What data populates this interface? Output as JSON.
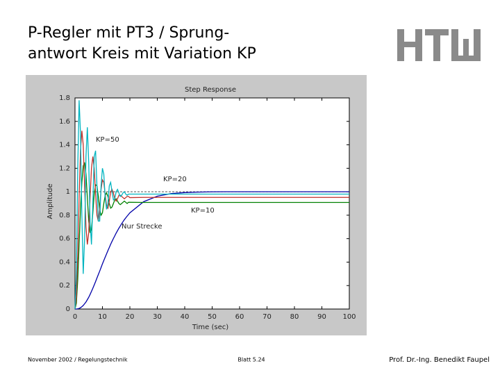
{
  "header": {
    "title_line1": "P-Regler mit PT3 / Sprung-",
    "title_line2": "antwort Kreis mit Variation KP"
  },
  "chart_data": {
    "type": "line",
    "title": "Step Response",
    "x_label": "Time (sec)",
    "y_label": "Amplitude",
    "x": [
      0,
      0.5,
      1,
      1.5,
      2,
      2.5,
      3,
      3.5,
      4,
      4.5,
      5,
      5.5,
      6,
      6.5,
      7,
      7.5,
      8,
      8.5,
      9,
      9.5,
      10,
      10.5,
      11,
      11.5,
      12,
      12.5,
      13,
      13.5,
      14,
      14.5,
      15,
      15.5,
      16,
      16.5,
      17,
      17.5,
      18,
      18.5,
      19,
      19.5,
      20,
      25,
      30,
      35,
      40,
      45,
      50,
      55,
      60,
      65,
      70,
      75,
      80,
      85,
      90,
      95,
      100
    ],
    "series": [
      {
        "name": "Nur Strecke",
        "color": "#0000a8",
        "values": [
          0,
          0,
          0.002,
          0.005,
          0.011,
          0.02,
          0.03,
          0.045,
          0.06,
          0.08,
          0.1,
          0.124,
          0.15,
          0.177,
          0.205,
          0.234,
          0.264,
          0.294,
          0.323,
          0.354,
          0.385,
          0.414,
          0.442,
          0.47,
          0.498,
          0.525,
          0.552,
          0.577,
          0.601,
          0.624,
          0.647,
          0.668,
          0.689,
          0.708,
          0.727,
          0.745,
          0.762,
          0.777,
          0.792,
          0.806,
          0.82,
          0.915,
          0.962,
          0.984,
          0.993,
          0.997,
          0.999,
          1,
          1,
          1,
          1,
          1,
          1,
          1,
          1,
          1,
          1
        ]
      },
      {
        "name": "KP=10",
        "color": "#008000",
        "values": [
          0,
          0.05,
          0.25,
          0.55,
          0.85,
          1.08,
          1.22,
          1.25,
          1.15,
          0.95,
          0.75,
          0.65,
          0.68,
          0.82,
          0.98,
          1.06,
          1.05,
          0.96,
          0.85,
          0.8,
          0.82,
          0.9,
          0.97,
          0.99,
          0.96,
          0.9,
          0.86,
          0.87,
          0.9,
          0.93,
          0.94,
          0.92,
          0.9,
          0.89,
          0.9,
          0.91,
          0.92,
          0.91,
          0.9,
          0.91,
          0.91,
          0.909,
          0.909,
          0.909,
          0.909,
          0.909,
          0.909,
          0.909,
          0.909,
          0.909,
          0.909,
          0.909,
          0.909,
          0.909,
          0.909,
          0.909,
          0.909
        ]
      },
      {
        "name": "KP=20",
        "color": "#c0302a",
        "values": [
          0,
          0.1,
          0.45,
          0.95,
          1.35,
          1.52,
          1.4,
          1.05,
          0.7,
          0.55,
          0.65,
          0.95,
          1.2,
          1.3,
          1.2,
          0.98,
          0.8,
          0.75,
          0.85,
          1.02,
          1.1,
          1.08,
          0.98,
          0.88,
          0.86,
          0.92,
          1,
          1.02,
          0.99,
          0.94,
          0.92,
          0.94,
          0.97,
          0.97,
          0.96,
          0.95,
          0.94,
          0.95,
          0.96,
          0.96,
          0.95,
          0.952,
          0.952,
          0.952,
          0.952,
          0.952,
          0.952,
          0.952,
          0.952,
          0.952,
          0.952,
          0.952,
          0.952,
          0.952,
          0.952,
          0.952,
          0.952
        ]
      },
      {
        "name": "KP=50",
        "color": "#00b4c0",
        "values": [
          0,
          0.3,
          1.2,
          1.78,
          1.5,
          0.8,
          0.3,
          0.6,
          1.3,
          1.55,
          1.25,
          0.75,
          0.55,
          0.9,
          1.3,
          1.35,
          1.05,
          0.75,
          0.75,
          1.05,
          1.2,
          1.15,
          0.95,
          0.85,
          0.9,
          1.05,
          1.08,
          1,
          0.93,
          0.94,
          1,
          1.02,
          0.99,
          0.96,
          0.97,
          0.99,
          1,
          0.98,
          0.97,
          0.98,
          0.98,
          0.98,
          0.98,
          0.98,
          0.98,
          0.98,
          0.98,
          0.98,
          0.98,
          0.98,
          0.98,
          0.98,
          0.98,
          0.98,
          0.98,
          0.98,
          0.98
        ]
      }
    ],
    "xlim": [
      0,
      100
    ],
    "ylim": [
      0,
      1.8
    ],
    "xticks": [
      0,
      10,
      20,
      30,
      40,
      50,
      60,
      70,
      80,
      90,
      100
    ],
    "yticks": [
      0,
      0.2,
      0.4,
      0.6,
      0.8,
      1,
      1.2,
      1.4,
      1.6,
      1.8
    ],
    "reference_line": 1
  },
  "footer": {
    "left": "November 2002 / Regelungstechnik",
    "center": "Blatt 5.24",
    "right": "Prof. Dr.-Ing. Benedikt Faupel"
  }
}
